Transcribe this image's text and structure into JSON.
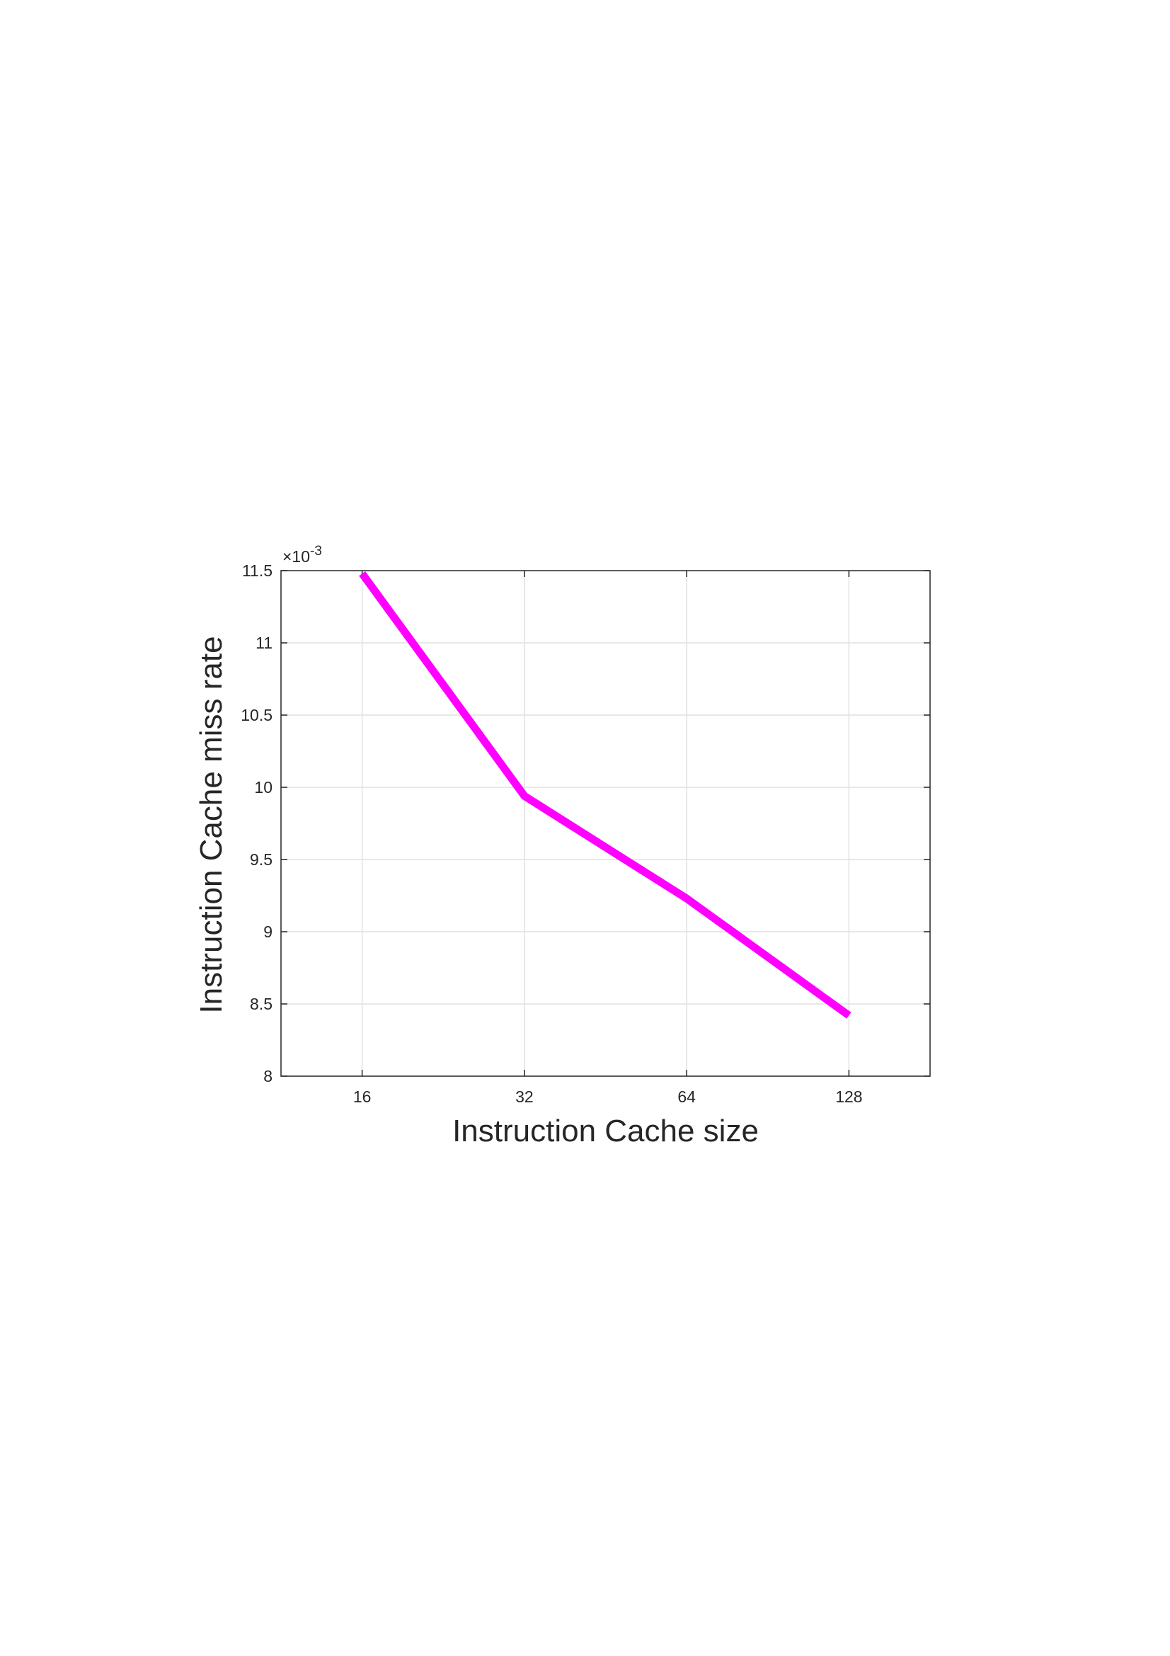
{
  "chart_data": {
    "type": "line",
    "xlabel": "Instruction Cache size",
    "ylabel": "Instruction Cache miss rate",
    "x_ticks": [
      "16",
      "32",
      "64",
      "128"
    ],
    "y_ticks": [
      "8",
      "8.5",
      "9",
      "9.5",
      "10",
      "10.5",
      "11",
      "11.5"
    ],
    "y_exponent": {
      "base": "×10",
      "power": "-3"
    },
    "x": [
      16,
      32,
      64,
      128
    ],
    "ylim": [
      8,
      11.5
    ],
    "xlim_log2": [
      3.5,
      7.5
    ],
    "x_scale": "log2",
    "grid": true,
    "series": [
      {
        "values": [
          11.48,
          9.94,
          9.23,
          8.42
        ],
        "color": "#ff00ff"
      }
    ]
  }
}
